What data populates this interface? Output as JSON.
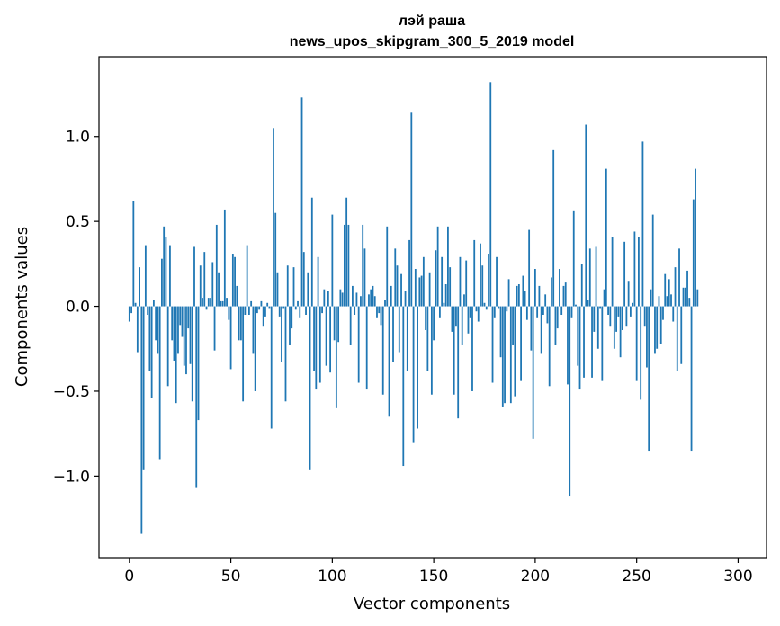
{
  "chart_data": {
    "type": "bar",
    "title": "лэй раша",
    "subtitle": "news_upos_skipgram_300_5_2019 model",
    "xlabel": "Vector components",
    "ylabel": "Components values",
    "xlim": [
      -15,
      314
    ],
    "ylim": [
      -1.48,
      1.47
    ],
    "xticks": [
      {
        "value": 0,
        "label": "0"
      },
      {
        "value": 50,
        "label": "50"
      },
      {
        "value": 100,
        "label": "100"
      },
      {
        "value": 150,
        "label": "150"
      },
      {
        "value": 200,
        "label": "200"
      },
      {
        "value": 250,
        "label": "250"
      },
      {
        "value": 300,
        "label": "300"
      }
    ],
    "yticks": [
      {
        "value": -1.0,
        "label": "−1.0"
      },
      {
        "value": -0.5,
        "label": "−0.5"
      },
      {
        "value": 0.0,
        "label": "0.0"
      },
      {
        "value": 0.5,
        "label": "0.5"
      },
      {
        "value": 1.0,
        "label": "1.0"
      }
    ],
    "grid": false,
    "bar_color": "#1f77b4",
    "values": [
      -0.09,
      -0.04,
      0.62,
      0.02,
      -0.27,
      0.23,
      -1.34,
      -0.96,
      0.36,
      -0.05,
      -0.38,
      -0.54,
      0.04,
      -0.2,
      -0.28,
      -0.9,
      0.28,
      0.47,
      0.41,
      -0.47,
      0.36,
      -0.2,
      -0.32,
      -0.57,
      -0.28,
      -0.11,
      -0.18,
      -0.35,
      -0.4,
      -0.13,
      -0.34,
      -0.56,
      0.35,
      -1.07,
      -0.67,
      0.24,
      0.05,
      0.32,
      -0.02,
      0.05,
      0.05,
      0.26,
      -0.26,
      0.48,
      0.2,
      0.03,
      0.03,
      0.57,
      0.05,
      -0.08,
      -0.37,
      0.31,
      0.29,
      0.12,
      -0.2,
      -0.2,
      -0.56,
      -0.05,
      0.36,
      -0.05,
      0.03,
      -0.28,
      -0.5,
      -0.04,
      -0.02,
      0.03,
      -0.12,
      -0.06,
      0.02,
      -0.01,
      -0.72,
      1.05,
      0.55,
      0.2,
      -0.06,
      -0.33,
      -0.01,
      -0.56,
      0.24,
      -0.23,
      -0.13,
      0.23,
      -0.02,
      0.03,
      -0.07,
      1.23,
      0.32,
      -0.05,
      0.2,
      -0.96,
      0.64,
      -0.38,
      -0.49,
      0.29,
      -0.45,
      -0.04,
      0.1,
      -0.35,
      0.09,
      -0.39,
      0.54,
      -0.2,
      -0.6,
      -0.21,
      0.1,
      0.08,
      0.48,
      0.64,
      0.48,
      -0.23,
      0.12,
      -0.05,
      0.08,
      -0.45,
      0.06,
      0.48,
      0.34,
      -0.49,
      0.07,
      0.1,
      0.12,
      0.06,
      -0.07,
      -0.04,
      -0.11,
      -0.52,
      0.04,
      0.47,
      -0.65,
      0.12,
      -0.33,
      0.34,
      0.24,
      -0.27,
      0.19,
      -0.94,
      0.09,
      -0.38,
      0.39,
      1.14,
      -0.8,
      0.22,
      -0.72,
      0.17,
      0.18,
      0.29,
      -0.14,
      -0.38,
      0.2,
      -0.52,
      -0.2,
      0.33,
      0.47,
      -0.07,
      0.29,
      0.02,
      0.13,
      0.47,
      0.23,
      -0.15,
      -0.52,
      -0.12,
      -0.66,
      0.29,
      -0.23,
      0.07,
      0.27,
      -0.16,
      -0.07,
      -0.5,
      0.39,
      -0.03,
      -0.09,
      0.37,
      0.24,
      0.02,
      -0.02,
      0.31,
      1.32,
      -0.45,
      -0.07,
      0.29,
      -0.01,
      -0.3,
      -0.59,
      -0.57,
      -0.03,
      0.16,
      -0.57,
      -0.23,
      -0.53,
      0.12,
      0.13,
      -0.44,
      0.18,
      0.09,
      -0.08,
      0.45,
      -0.26,
      -0.78,
      0.22,
      -0.07,
      0.12,
      -0.28,
      -0.05,
      0.07,
      -0.1,
      -0.47,
      0.17,
      0.92,
      -0.23,
      -0.13,
      0.22,
      -0.05,
      0.12,
      0.14,
      -0.46,
      -1.12,
      -0.07,
      0.56,
      0.01,
      -0.35,
      -0.49,
      0.25,
      -0.42,
      1.07,
      0.04,
      0.34,
      -0.42,
      -0.15,
      0.35,
      -0.25,
      -0.01,
      -0.44,
      0.1,
      0.81,
      -0.05,
      -0.12,
      0.41,
      -0.25,
      -0.15,
      -0.06,
      -0.3,
      -0.14,
      0.38,
      -0.12,
      0.15,
      -0.06,
      0.02,
      0.44,
      -0.44,
      0.41,
      -0.55,
      0.97,
      -0.12,
      -0.36,
      -0.85,
      0.1,
      0.54,
      -0.28,
      -0.25,
      0.06,
      -0.22,
      -0.08,
      0.19,
      0.06,
      0.16,
      0.07,
      -0.09,
      0.23,
      -0.38,
      0.34,
      -0.34,
      0.11,
      0.11,
      0.21,
      0.05,
      -0.85,
      0.63,
      0.81,
      0.1
    ]
  }
}
